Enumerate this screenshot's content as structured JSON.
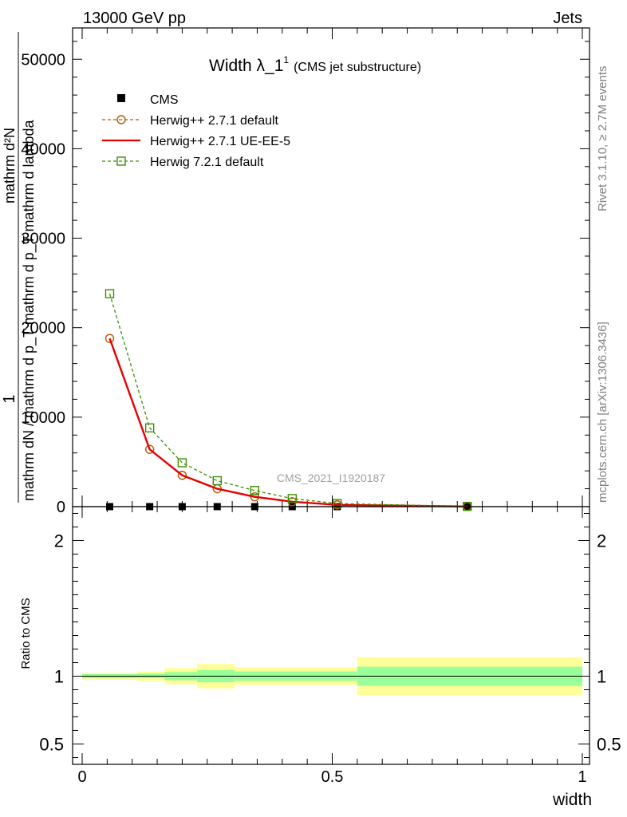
{
  "header": {
    "left": "13000 GeV pp",
    "right": "Jets"
  },
  "side": {
    "rivet": "Rivet 3.1.10, ≥ 2.7M events",
    "mcplots": "mcplots.cern.ch [arXiv:1306.3436]"
  },
  "colors": {
    "cms": "#000000",
    "herwigpp_default": "#b35900",
    "herwigpp_ueee5": "#e60000",
    "herwig721": "#3a8f00",
    "band_inner": "#99ff99",
    "band_outer": "#ffff99"
  },
  "chart_data": [
    {
      "type": "line",
      "title": "Width λ_1",
      "title_sup": "1",
      "title_sub": "(CMS jet substructure)",
      "watermark": "CMS_2021_I1920187",
      "ylabel_num": "1",
      "ylabel_den": "mathrm dN / mathrm d p_T mathrm d p_T mathrm d lambda",
      "ylabel_top": "mathrm d²N",
      "xlim": [
        0,
        1
      ],
      "ylim": [
        0,
        53500
      ],
      "yticks": [
        {
          "value": 0,
          "label": "0"
        },
        {
          "value": 10000,
          "label": "10000"
        },
        {
          "value": 20000,
          "label": "20000"
        },
        {
          "value": 30000,
          "label": "30000"
        },
        {
          "value": 40000,
          "label": "40000"
        },
        {
          "value": 50000,
          "label": "50000"
        }
      ],
      "legend_position": "top-left",
      "series": [
        {
          "name": "CMS",
          "key": "cms",
          "style": "marker-square",
          "x": [
            0.055,
            0.135,
            0.2,
            0.27,
            0.345,
            0.42,
            0.51,
            0.77
          ],
          "y": [
            0,
            0,
            0,
            0,
            0,
            0,
            0,
            0
          ]
        },
        {
          "name": "Herwig++ 2.7.1 default",
          "key": "herwigpp_default",
          "style": "dashed-circle",
          "x": [
            0.055,
            0.135,
            0.2,
            0.27,
            0.345,
            0.42,
            0.51,
            0.77
          ],
          "y": [
            18800,
            6400,
            3500,
            2000,
            1100,
            550,
            200,
            20
          ]
        },
        {
          "name": "Herwig++ 2.7.1 UE-EE-5",
          "key": "herwigpp_ueee5",
          "style": "solid",
          "x": [
            0.055,
            0.135,
            0.2,
            0.27,
            0.345,
            0.42,
            0.51,
            0.77
          ],
          "y": [
            18800,
            6400,
            3500,
            2000,
            1100,
            550,
            200,
            20
          ]
        },
        {
          "name": "Herwig 7.2.1 default",
          "key": "herwig721",
          "style": "dashed-square",
          "x": [
            0.055,
            0.135,
            0.2,
            0.27,
            0.345,
            0.42,
            0.51,
            0.77
          ],
          "y": [
            23800,
            8800,
            4900,
            2900,
            1800,
            900,
            350,
            30
          ]
        }
      ]
    },
    {
      "type": "area",
      "ylabel": "Ratio to CMS",
      "xlabel": "width",
      "xlim": [
        0,
        1
      ],
      "ylim": [
        0.35,
        2.25
      ],
      "xticks": [
        {
          "value": 0,
          "label": "0"
        },
        {
          "value": 0.5,
          "label": "0.5"
        },
        {
          "value": 1,
          "label": "1"
        }
      ],
      "yticks": [
        {
          "value": 0.5,
          "label": "0.5"
        },
        {
          "value": 1,
          "label": "1"
        },
        {
          "value": 2,
          "label": "2"
        }
      ],
      "reference_line": 1,
      "bins": [
        {
          "x0": 0.0,
          "x1": 0.11,
          "inner": [
            0.985,
            1.015
          ],
          "outer": [
            0.975,
            1.025
          ]
        },
        {
          "x0": 0.11,
          "x1": 0.165,
          "inner": [
            0.985,
            1.02
          ],
          "outer": [
            0.965,
            1.035
          ]
        },
        {
          "x0": 0.165,
          "x1": 0.23,
          "inner": [
            0.97,
            1.03
          ],
          "outer": [
            0.94,
            1.06
          ]
        },
        {
          "x0": 0.23,
          "x1": 0.305,
          "inner": [
            0.955,
            1.045
          ],
          "outer": [
            0.91,
            1.09
          ]
        },
        {
          "x0": 0.305,
          "x1": 0.55,
          "inner": [
            0.965,
            1.035
          ],
          "outer": [
            0.935,
            1.065
          ]
        },
        {
          "x0": 0.55,
          "x1": 1.0,
          "inner": [
            0.93,
            1.07
          ],
          "outer": [
            0.86,
            1.14
          ]
        }
      ]
    }
  ]
}
